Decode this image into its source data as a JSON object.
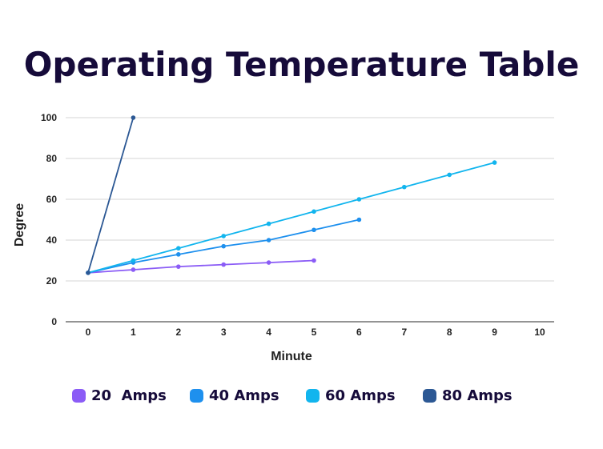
{
  "chart_data": {
    "type": "line",
    "title": "Operating Temperature Table",
    "xlabel": "Minute",
    "ylabel": "Degree",
    "xlim": [
      0,
      10
    ],
    "ylim": [
      0,
      100
    ],
    "x_ticks": [
      "0",
      "1",
      "2",
      "3",
      "4",
      "5",
      "6",
      "7",
      "8",
      "9",
      "10"
    ],
    "y_ticks": [
      "0",
      "20",
      "40",
      "60",
      "80",
      "100"
    ],
    "grid": true,
    "legend_position": "bottom",
    "series": [
      {
        "name": "20  Amps",
        "color": "#8b5cf6",
        "x": [
          0,
          1,
          2,
          3,
          4,
          5
        ],
        "y": [
          24,
          25.5,
          27,
          28,
          29,
          30
        ]
      },
      {
        "name": "40 Amps",
        "color": "#1e90ee",
        "x": [
          0,
          1,
          2,
          3,
          4,
          5,
          6
        ],
        "y": [
          24,
          29,
          33,
          37,
          40,
          45,
          50
        ]
      },
      {
        "name": "60 Amps",
        "color": "#12b5ee",
        "x": [
          0,
          1,
          2,
          3,
          4,
          5,
          6,
          7,
          8,
          9
        ],
        "y": [
          24,
          30,
          36,
          42,
          48,
          54,
          60,
          66,
          72,
          78
        ]
      },
      {
        "name": "80 Amps",
        "color": "#2c5894",
        "x": [
          0,
          1
        ],
        "y": [
          24,
          100
        ]
      }
    ]
  }
}
